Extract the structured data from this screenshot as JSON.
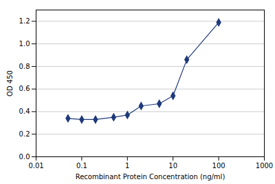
{
  "chart_data": {
    "type": "line",
    "x": [
      0.05,
      0.1,
      0.2,
      0.5,
      1.0,
      2.0,
      5.0,
      10.0,
      20.0,
      100.0
    ],
    "values": [
      0.34,
      0.33,
      0.33,
      0.35,
      0.37,
      0.45,
      0.47,
      0.54,
      0.86,
      1.19
    ],
    "xlabel": "Recombinant Protein Concentration (ng/ml)",
    "ylabel": "OD 450",
    "log": "x",
    "xlim": [
      0.01,
      1000
    ],
    "xticks": [
      0.01,
      0.1,
      1,
      10,
      100,
      1000
    ],
    "ylim": [
      0.0,
      1.3
    ],
    "yticks": [
      {
        "value": 0,
        "label": "0.0"
      },
      0.2,
      0.4,
      0.6,
      0.8,
      {
        "value": 1,
        "label": "1.0"
      },
      1.2
    ],
    "color": "#1F3A7A",
    "marker": "diamond",
    "grid": "y"
  }
}
